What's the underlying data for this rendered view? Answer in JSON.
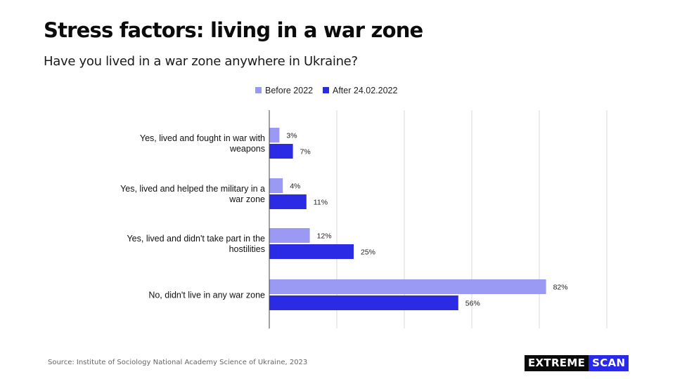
{
  "title": "Stress factors: living in a war zone",
  "subtitle": "Have you lived in a war zone anywhere in Ukraine?",
  "source": "Source: Institute of Sociology National Academy Science of Ukraine, 2023",
  "logo": {
    "part1": "EXTREME",
    "part2": "SCAN"
  },
  "colors": {
    "series1": "#9a9af5",
    "series2": "#2b2be6",
    "grid": "#d9d9d9",
    "axis": "#444444"
  },
  "chart_data": {
    "type": "bar",
    "orientation": "horizontal",
    "categories": [
      [
        "Yes, lived and fought in war with",
        "weapons"
      ],
      [
        "Yes, lived and helped the military in a",
        "war zone"
      ],
      [
        "Yes, lived and didn't take part in the",
        "hostilities"
      ],
      [
        "No, didn't live in any war zone"
      ]
    ],
    "series": [
      {
        "name": "Before 2022",
        "values": [
          3,
          4,
          12,
          82
        ],
        "labels": [
          "3%",
          "4%",
          "12%",
          "82%"
        ]
      },
      {
        "name": "After 24.02.2022",
        "values": [
          7,
          11,
          25,
          56
        ],
        "labels": [
          "7%",
          "11%",
          "25%",
          "56%"
        ]
      }
    ],
    "xlim": [
      0,
      100
    ],
    "grid": true,
    "legend": "top-center"
  }
}
